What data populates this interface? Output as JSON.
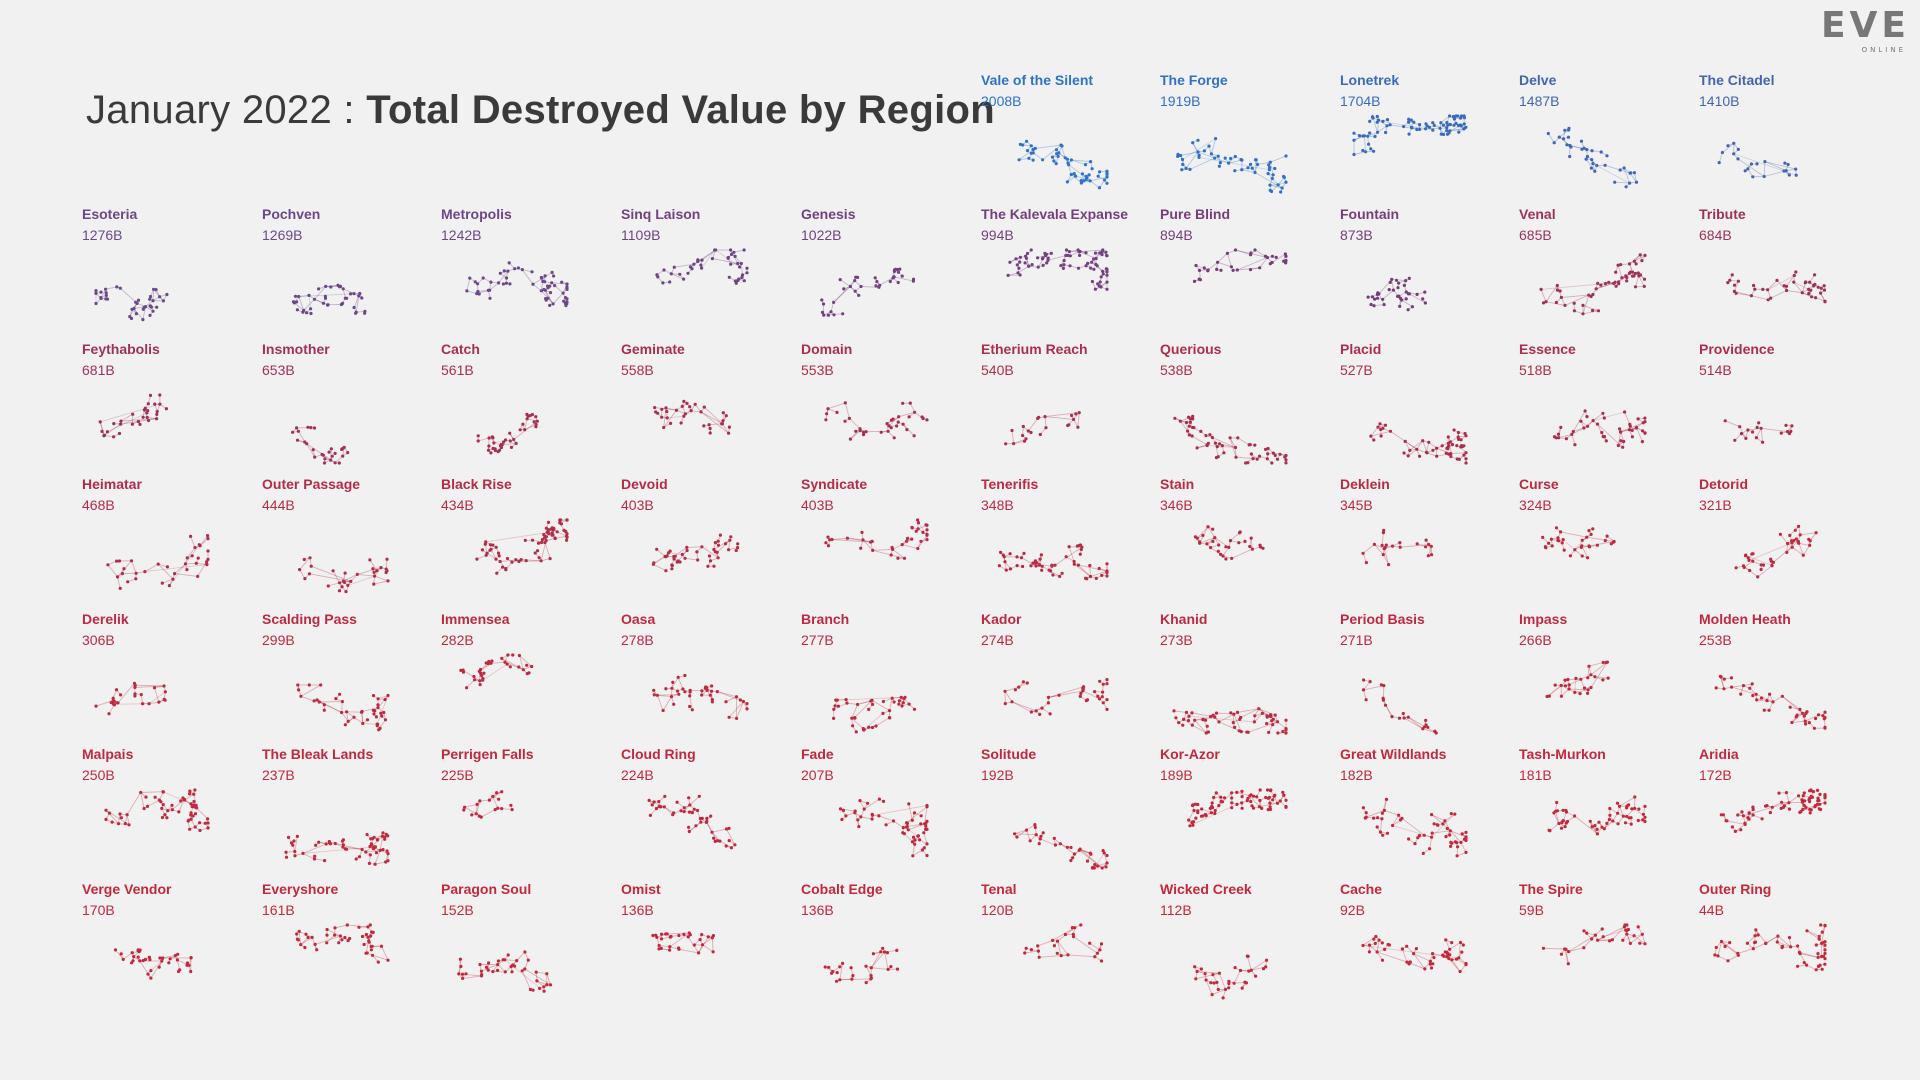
{
  "page": {
    "title_date": "January 2022 : ",
    "title_main": "Total Destroyed Value by Region",
    "logo_main": "EVE",
    "logo_sub": "ONLINE"
  },
  "chart_data": {
    "type": "small-multiples",
    "title": "January 2022 : Total Destroyed Value by Region",
    "unit": "B",
    "color_scale": {
      "high": "#2f72c8",
      "mid": "#6a4a8a",
      "low": "#c4283a"
    },
    "regions": [
      {
        "name": "Vale of the Silent",
        "value": "2008B",
        "v": 2008
      },
      {
        "name": "The Forge",
        "value": "1919B",
        "v": 1919
      },
      {
        "name": "Lonetrek",
        "value": "1704B",
        "v": 1704
      },
      {
        "name": "Delve",
        "value": "1487B",
        "v": 1487
      },
      {
        "name": "The Citadel",
        "value": "1410B",
        "v": 1410
      },
      {
        "name": "Esoteria",
        "value": "1276B",
        "v": 1276
      },
      {
        "name": "Pochven",
        "value": "1269B",
        "v": 1269
      },
      {
        "name": "Metropolis",
        "value": "1242B",
        "v": 1242
      },
      {
        "name": "Sinq Laison",
        "value": "1109B",
        "v": 1109
      },
      {
        "name": "Genesis",
        "value": "1022B",
        "v": 1022
      },
      {
        "name": "The Kalevala Expanse",
        "value": "994B",
        "v": 994
      },
      {
        "name": "Pure Blind",
        "value": "894B",
        "v": 894
      },
      {
        "name": "Fountain",
        "value": "873B",
        "v": 873
      },
      {
        "name": "Venal",
        "value": "685B",
        "v": 685
      },
      {
        "name": "Tribute",
        "value": "684B",
        "v": 684
      },
      {
        "name": "Feythabolis",
        "value": "681B",
        "v": 681
      },
      {
        "name": "Insmother",
        "value": "653B",
        "v": 653
      },
      {
        "name": "Catch",
        "value": "561B",
        "v": 561
      },
      {
        "name": "Geminate",
        "value": "558B",
        "v": 558
      },
      {
        "name": "Domain",
        "value": "553B",
        "v": 553
      },
      {
        "name": "Etherium Reach",
        "value": "540B",
        "v": 540
      },
      {
        "name": "Querious",
        "value": "538B",
        "v": 538
      },
      {
        "name": "Placid",
        "value": "527B",
        "v": 527
      },
      {
        "name": "Essence",
        "value": "518B",
        "v": 518
      },
      {
        "name": "Providence",
        "value": "514B",
        "v": 514
      },
      {
        "name": "Heimatar",
        "value": "468B",
        "v": 468
      },
      {
        "name": "Outer Passage",
        "value": "444B",
        "v": 444
      },
      {
        "name": "Black Rise",
        "value": "434B",
        "v": 434
      },
      {
        "name": "Devoid",
        "value": "403B",
        "v": 403
      },
      {
        "name": "Syndicate",
        "value": "403B",
        "v": 403
      },
      {
        "name": "Tenerifis",
        "value": "348B",
        "v": 348
      },
      {
        "name": "Stain",
        "value": "346B",
        "v": 346
      },
      {
        "name": "Deklein",
        "value": "345B",
        "v": 345
      },
      {
        "name": "Curse",
        "value": "324B",
        "v": 324
      },
      {
        "name": "Detorid",
        "value": "321B",
        "v": 321
      },
      {
        "name": "Derelik",
        "value": "306B",
        "v": 306
      },
      {
        "name": "Scalding Pass",
        "value": "299B",
        "v": 299
      },
      {
        "name": "Immensea",
        "value": "282B",
        "v": 282
      },
      {
        "name": "Oasa",
        "value": "278B",
        "v": 278
      },
      {
        "name": "Branch",
        "value": "277B",
        "v": 277
      },
      {
        "name": "Kador",
        "value": "274B",
        "v": 274
      },
      {
        "name": "Khanid",
        "value": "273B",
        "v": 273
      },
      {
        "name": "Period Basis",
        "value": "271B",
        "v": 271
      },
      {
        "name": "Impass",
        "value": "266B",
        "v": 266
      },
      {
        "name": "Molden Heath",
        "value": "253B",
        "v": 253
      },
      {
        "name": "Malpais",
        "value": "250B",
        "v": 250
      },
      {
        "name": "The Bleak Lands",
        "value": "237B",
        "v": 237
      },
      {
        "name": "Perrigen Falls",
        "value": "225B",
        "v": 225
      },
      {
        "name": "Cloud Ring",
        "value": "224B",
        "v": 224
      },
      {
        "name": "Fade",
        "value": "207B",
        "v": 207
      },
      {
        "name": "Solitude",
        "value": "192B",
        "v": 192
      },
      {
        "name": "Kor-Azor",
        "value": "189B",
        "v": 189
      },
      {
        "name": "Great Wildlands",
        "value": "182B",
        "v": 182
      },
      {
        "name": "Tash-Murkon",
        "value": "181B",
        "v": 181
      },
      {
        "name": "Aridia",
        "value": "172B",
        "v": 172
      },
      {
        "name": "Verge Vendor",
        "value": "170B",
        "v": 170
      },
      {
        "name": "Everyshore",
        "value": "161B",
        "v": 161
      },
      {
        "name": "Paragon Soul",
        "value": "152B",
        "v": 152
      },
      {
        "name": "Omist",
        "value": "136B",
        "v": 136
      },
      {
        "name": "Cobalt Edge",
        "value": "136B",
        "v": 136
      },
      {
        "name": "Tenal",
        "value": "120B",
        "v": 120
      },
      {
        "name": "Wicked Creek",
        "value": "112B",
        "v": 112
      },
      {
        "name": "Cache",
        "value": "92B",
        "v": 92
      },
      {
        "name": "The Spire",
        "value": "59B",
        "v": 59
      },
      {
        "name": "Outer Ring",
        "value": "44B",
        "v": 44
      }
    ]
  }
}
